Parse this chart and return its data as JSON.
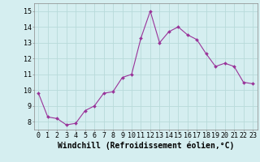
{
  "x": [
    0,
    1,
    2,
    3,
    4,
    5,
    6,
    7,
    8,
    9,
    10,
    11,
    12,
    13,
    14,
    15,
    16,
    17,
    18,
    19,
    20,
    21,
    22,
    23
  ],
  "y": [
    9.8,
    8.3,
    8.2,
    7.8,
    7.9,
    8.7,
    9.0,
    9.8,
    9.9,
    10.8,
    11.0,
    13.3,
    15.0,
    13.0,
    13.7,
    14.0,
    13.5,
    13.2,
    12.3,
    11.5,
    11.7,
    11.5,
    10.5,
    10.4
  ],
  "line_color": "#993399",
  "marker": "D",
  "marker_size": 2.0,
  "line_width": 0.8,
  "bg_color": "#d5eef0",
  "grid_color": "#b8dada",
  "xlabel": "Windchill (Refroidissement éolien,°C)",
  "xlabel_fontsize": 7,
  "tick_fontsize": 6,
  "xlim": [
    -0.5,
    23.5
  ],
  "ylim": [
    7.5,
    15.5
  ],
  "yticks": [
    8,
    9,
    10,
    11,
    12,
    13,
    14,
    15
  ],
  "xticks": [
    0,
    1,
    2,
    3,
    4,
    5,
    6,
    7,
    8,
    9,
    10,
    11,
    12,
    13,
    14,
    15,
    16,
    17,
    18,
    19,
    20,
    21,
    22,
    23
  ]
}
